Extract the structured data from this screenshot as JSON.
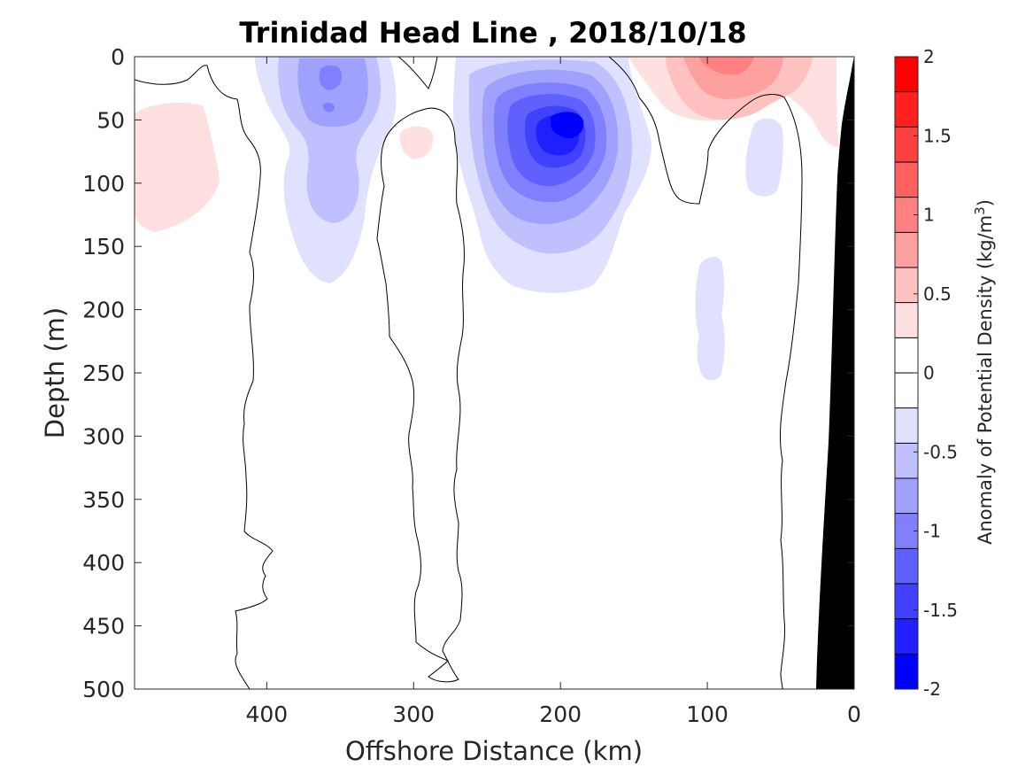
{
  "chart_data": {
    "type": "heatmap",
    "title": "Trinidad Head Line , 2018/10/18",
    "xlabel": "Offshore Distance (km)",
    "ylabel": "Depth (m)",
    "xlim": [
      490,
      0
    ],
    "ylim": [
      0,
      500
    ],
    "x_reversed": true,
    "y_reversed": true,
    "x_ticks": [
      "400",
      "300",
      "200",
      "100",
      "0"
    ],
    "x_tick_values": [
      400,
      300,
      200,
      100,
      0
    ],
    "y_ticks": [
      "0",
      "50",
      "100",
      "150",
      "200",
      "250",
      "300",
      "350",
      "400",
      "450",
      "500"
    ],
    "y_tick_values": [
      0,
      50,
      100,
      150,
      200,
      250,
      300,
      350,
      400,
      450,
      500
    ],
    "colorbar": {
      "label": "Anomaly of Potential Density (kg/m",
      "label_superscript": "3",
      "label_suffix": ")",
      "range": [
        -2,
        2
      ],
      "step": 0.25,
      "tick_labels": [
        "2",
        "1.5",
        "1",
        "0.5",
        "0",
        "-0.5",
        "-1",
        "-1.5",
        "-2"
      ],
      "tick_values": [
        2,
        1.5,
        1,
        0.5,
        0,
        -0.5,
        -1,
        -1.5,
        -2
      ],
      "colors": [
        "#ff0000",
        "#ff2020",
        "#ff4040",
        "#ff6060",
        "#ff8080",
        "#ffa0a0",
        "#ffc0c0",
        "#ffe0e0",
        "#ffffff",
        "#ffffff",
        "#e0e0ff",
        "#c0c0ff",
        "#a0a0ff",
        "#8080ff",
        "#6060ff",
        "#4040ff",
        "#2020ff",
        "#0000ff"
      ]
    },
    "anomaly_features": [
      {
        "x": 470,
        "depth": 85,
        "anomaly": 0.25
      },
      {
        "x": 355,
        "depth": 30,
        "anomaly": -1.0
      },
      {
        "x": 360,
        "depth": 110,
        "anomaly": -0.5
      },
      {
        "x": 290,
        "depth": 65,
        "anomaly": 0.25
      },
      {
        "x": 198,
        "depth": 55,
        "anomaly": -1.75
      },
      {
        "x": 90,
        "depth": 15,
        "anomaly": 0.75
      },
      {
        "x": 65,
        "depth": 90,
        "anomaly": -0.25
      },
      {
        "x": 100,
        "depth": 210,
        "anomaly": -0.25
      }
    ],
    "bathymetry_color": "#000000"
  }
}
